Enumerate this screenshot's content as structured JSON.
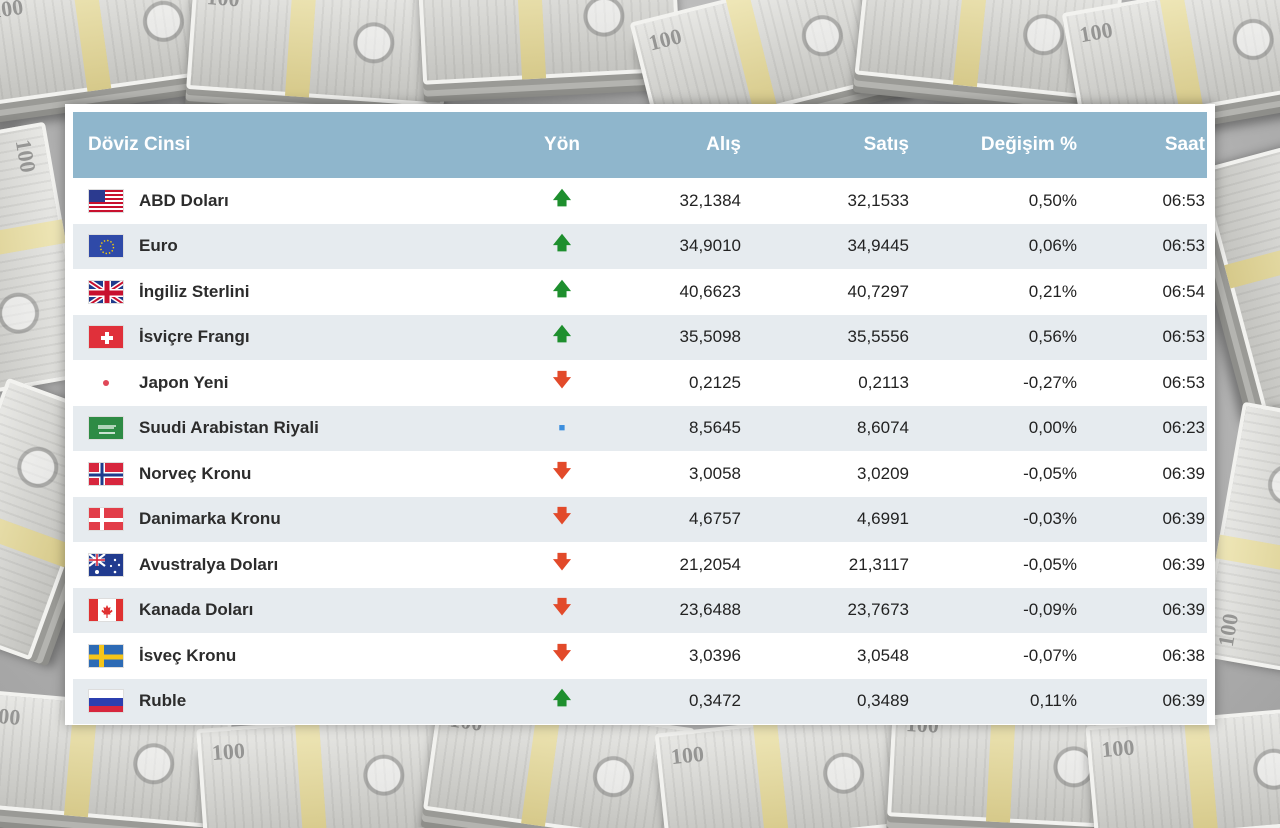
{
  "table": {
    "headers": {
      "currency": "Döviz Cinsi",
      "direction": "Yön",
      "buy": "Alış",
      "sell": "Satış",
      "change": "Değişim %",
      "time": "Saat"
    },
    "rows": [
      {
        "flag": "us-flag-icon",
        "name": "ABD Doları",
        "direction": "up",
        "direction_glyph": "🡅",
        "buy": "32,1384",
        "sell": "32,1533",
        "change": "0,50%",
        "time": "06:53"
      },
      {
        "flag": "eu-flag-icon",
        "name": "Euro",
        "direction": "up",
        "direction_glyph": "🡅",
        "buy": "34,9010",
        "sell": "34,9445",
        "change": "0,06%",
        "time": "06:53"
      },
      {
        "flag": "gb-flag-icon",
        "name": "İngiliz Sterlini",
        "direction": "up",
        "direction_glyph": "🡅",
        "buy": "40,6623",
        "sell": "40,7297",
        "change": "0,21%",
        "time": "06:54"
      },
      {
        "flag": "ch-flag-icon",
        "name": "İsviçre Frangı",
        "direction": "up",
        "direction_glyph": "🡅",
        "buy": "35,5098",
        "sell": "35,5556",
        "change": "0,56%",
        "time": "06:53"
      },
      {
        "flag": "jp-flag-icon",
        "name": "Japon Yeni",
        "direction": "down",
        "direction_glyph": "🡇",
        "buy": "0,2125",
        "sell": "0,2113",
        "change": "-0,27%",
        "time": "06:53"
      },
      {
        "flag": "sa-flag-icon",
        "name": "Suudi Arabistan Riyali",
        "direction": "same",
        "direction_glyph": "■",
        "buy": "8,5645",
        "sell": "8,6074",
        "change": "0,00%",
        "time": "06:23"
      },
      {
        "flag": "no-flag-icon",
        "name": "Norveç Kronu",
        "direction": "down",
        "direction_glyph": "🡇",
        "buy": "3,0058",
        "sell": "3,0209",
        "change": "-0,05%",
        "time": "06:39"
      },
      {
        "flag": "dk-flag-icon",
        "name": "Danimarka Kronu",
        "direction": "down",
        "direction_glyph": "🡇",
        "buy": "4,6757",
        "sell": "4,6991",
        "change": "-0,03%",
        "time": "06:39"
      },
      {
        "flag": "au-flag-icon",
        "name": "Avustralya Doları",
        "direction": "down",
        "direction_glyph": "🡇",
        "buy": "21,2054",
        "sell": "21,3117",
        "change": "-0,05%",
        "time": "06:39"
      },
      {
        "flag": "ca-flag-icon",
        "name": "Kanada Doları",
        "direction": "down",
        "direction_glyph": "🡇",
        "buy": "23,6488",
        "sell": "23,7673",
        "change": "-0,09%",
        "time": "06:39"
      },
      {
        "flag": "se-flag-icon",
        "name": "İsveç Kronu",
        "direction": "down",
        "direction_glyph": "🡇",
        "buy": "3,0396",
        "sell": "3,0548",
        "change": "-0,07%",
        "time": "06:38"
      },
      {
        "flag": "ru-flag-icon",
        "name": "Ruble",
        "direction": "up",
        "direction_glyph": "🡅",
        "buy": "0,3472",
        "sell": "0,3489",
        "change": "0,11%",
        "time": "06:39"
      }
    ]
  },
  "colors": {
    "header_bg": "#8fb6cc",
    "row_alt_bg": "#e6ebef",
    "up": "#1e8f2e",
    "down": "#e24a2a",
    "same": "#3c8ede"
  }
}
